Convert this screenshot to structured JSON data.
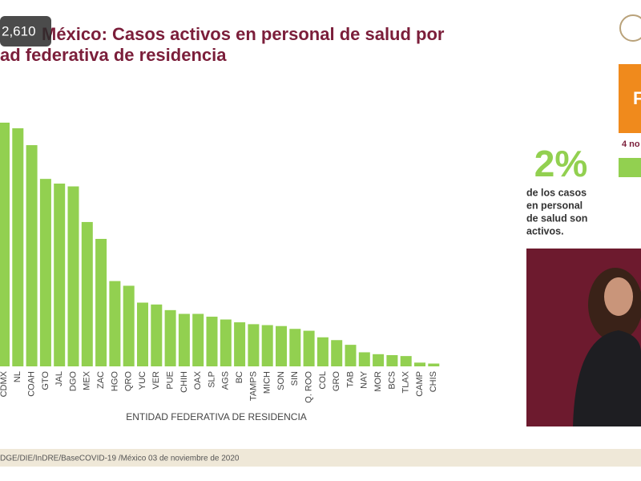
{
  "overlay": "2,610",
  "chart_data": {
    "type": "bar",
    "title": [
      "México: Casos activos en personal de salud por",
      "ad federativa de residencia"
    ],
    "x_label": "ENTIDAD FEDERATIVA DE RESIDENCIA",
    "categories": [
      "CDMX",
      "NL",
      "COAH",
      "GTO",
      "JAL",
      "DGO",
      "MEX",
      "ZAC",
      "HGO",
      "QRO",
      "YUC",
      "VER",
      "PUE",
      "CHIH",
      "OAX",
      "SLP",
      "AGS",
      "BC",
      "TAMPS",
      "MICH",
      "SON",
      "SIN",
      "Q. ROO",
      "COL",
      "GRO",
      "TAB",
      "NAY",
      "MOR",
      "BCS",
      "TLAX",
      "CAMP",
      "CHIS"
    ],
    "values": [
      260,
      254,
      236,
      200,
      195,
      192,
      154,
      136,
      91,
      86,
      68,
      66,
      60,
      56,
      56,
      53,
      50,
      47,
      45,
      44,
      43,
      40,
      38,
      31,
      28,
      23,
      15,
      13,
      12,
      11,
      4,
      3
    ],
    "color": "#92d050"
  },
  "callout": {
    "value": "2%",
    "lines": [
      "de los casos",
      "en personal",
      "de salud son",
      "activos."
    ]
  },
  "badge": {
    "letter": "F",
    "date": "4 no"
  },
  "footer": "DGE/DIE/InDRE/BaseCOVID-19 /México 03 de noviembre de 2020"
}
